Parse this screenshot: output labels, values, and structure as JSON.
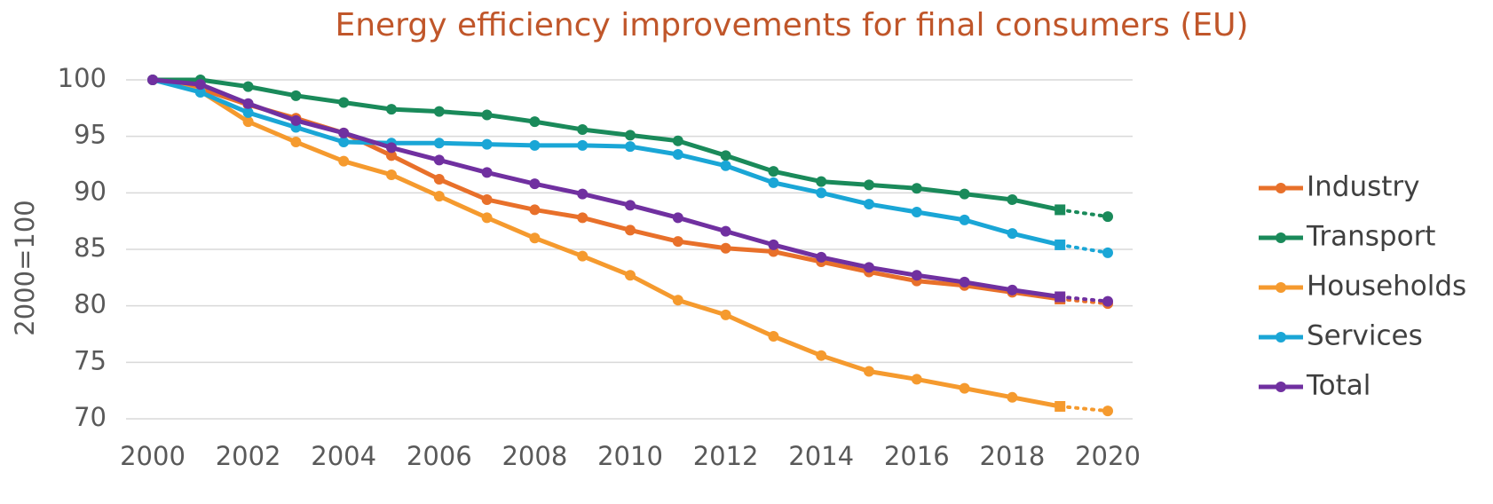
{
  "chart_data": {
    "type": "line",
    "title": "Energy efficiency improvements for final consumers (EU)",
    "y_label": "2000=100",
    "x": [
      2000,
      2001,
      2002,
      2003,
      2004,
      2005,
      2006,
      2007,
      2008,
      2009,
      2010,
      2011,
      2012,
      2013,
      2014,
      2015,
      2016,
      2017,
      2018,
      2019,
      2020
    ],
    "xlim": [
      2000,
      2020
    ],
    "xticks": [
      2000,
      2002,
      2004,
      2006,
      2008,
      2010,
      2012,
      2014,
      2016,
      2018,
      2020
    ],
    "ylim": [
      70,
      100
    ],
    "yticks": [
      70,
      75,
      80,
      85,
      90,
      95,
      100
    ],
    "grid": true,
    "legend": "right",
    "series": [
      {
        "name": "Industry",
        "color": "#e8702a",
        "values": [
          100,
          99.2,
          97.8,
          96.6,
          95.3,
          93.3,
          91.2,
          89.4,
          88.5,
          87.8,
          86.7,
          85.7,
          85.1,
          84.8,
          83.9,
          83.0,
          82.2,
          81.8,
          81.2,
          80.6,
          80.2
        ]
      },
      {
        "name": "Transport",
        "color": "#1a8a5a",
        "values": [
          100,
          100,
          99.4,
          98.6,
          98.0,
          97.4,
          97.2,
          96.9,
          96.3,
          95.6,
          95.1,
          94.6,
          93.3,
          91.9,
          91.0,
          90.7,
          90.4,
          89.9,
          89.4,
          88.5,
          87.9
        ]
      },
      {
        "name": "Households",
        "color": "#f59a2e",
        "values": [
          100,
          99.0,
          96.3,
          94.5,
          92.8,
          91.6,
          89.7,
          87.8,
          86.0,
          84.4,
          82.7,
          80.5,
          79.2,
          77.3,
          75.6,
          74.2,
          73.5,
          72.7,
          71.9,
          71.1,
          70.7
        ]
      },
      {
        "name": "Services",
        "color": "#1aa6d6",
        "values": [
          100,
          98.9,
          97.1,
          95.8,
          94.5,
          94.4,
          94.4,
          94.3,
          94.2,
          94.2,
          94.1,
          93.4,
          92.4,
          90.9,
          90.0,
          89.0,
          88.3,
          87.6,
          86.4,
          85.4,
          84.7
        ]
      },
      {
        "name": "Total",
        "color": "#7030a0",
        "values": [
          100,
          99.6,
          97.9,
          96.4,
          95.3,
          94.0,
          92.9,
          91.8,
          90.8,
          89.9,
          88.9,
          87.8,
          86.6,
          85.4,
          84.3,
          83.4,
          82.7,
          82.1,
          81.4,
          80.8,
          80.4
        ]
      }
    ]
  }
}
